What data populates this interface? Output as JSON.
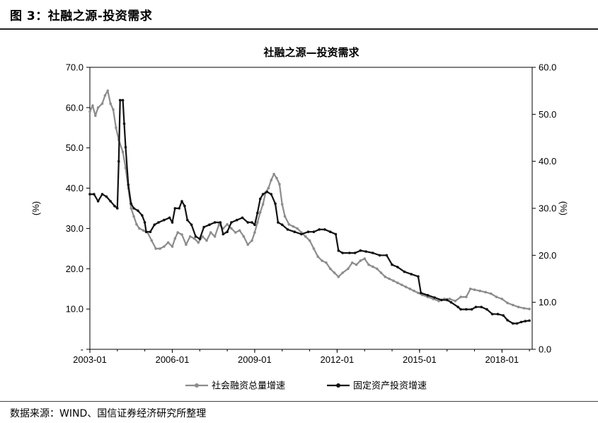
{
  "figure": {
    "label": "图 3：社融之源-投资需求",
    "source": "数据来源：WIND、国信证券经济研究所整理"
  },
  "chart_data": {
    "type": "line",
    "title": "社融之源—投资需求",
    "ylabel_left": "(%)",
    "ylabel_right": "(%)",
    "x_ticks": [
      "2003-01",
      "2006-01",
      "2009-01",
      "2012-01",
      "2015-01",
      "2018-01"
    ],
    "x_range": [
      2003.0,
      2019.1
    ],
    "y_left": {
      "lim": [
        0,
        70
      ],
      "ticks": [
        "-",
        "10.0",
        "20.0",
        "30.0",
        "40.0",
        "50.0",
        "60.0",
        "70.0"
      ]
    },
    "y_right": {
      "lim": [
        0,
        60
      ],
      "ticks": [
        "0.0",
        "10.0",
        "20.0",
        "30.0",
        "40.0",
        "50.0",
        "60.0"
      ]
    },
    "grid": false,
    "legend_position": "bottom",
    "series": [
      {
        "name": "社会融资总量增速",
        "axis": "left",
        "color": "#8c8c8c",
        "marker": "circle",
        "points": [
          [
            2003.0,
            59
          ],
          [
            2003.1,
            60.5
          ],
          [
            2003.2,
            58
          ],
          [
            2003.3,
            60
          ],
          [
            2003.45,
            61
          ],
          [
            2003.55,
            63
          ],
          [
            2003.65,
            64.2
          ],
          [
            2003.75,
            61
          ],
          [
            2003.85,
            59.5
          ],
          [
            2003.95,
            55
          ],
          [
            2004.05,
            52
          ],
          [
            2004.2,
            49
          ],
          [
            2004.3,
            45
          ],
          [
            2004.4,
            40
          ],
          [
            2004.5,
            35
          ],
          [
            2004.6,
            33
          ],
          [
            2004.7,
            31
          ],
          [
            2004.8,
            30
          ],
          [
            2004.95,
            29.5
          ],
          [
            2005.1,
            29
          ],
          [
            2005.25,
            27
          ],
          [
            2005.4,
            25
          ],
          [
            2005.55,
            25
          ],
          [
            2005.7,
            25.5
          ],
          [
            2005.85,
            26.5
          ],
          [
            2006.0,
            25.5
          ],
          [
            2006.1,
            27.5
          ],
          [
            2006.2,
            29
          ],
          [
            2006.35,
            28.5
          ],
          [
            2006.5,
            26
          ],
          [
            2006.65,
            28
          ],
          [
            2006.8,
            27.5
          ],
          [
            2006.95,
            26.5
          ],
          [
            2007.1,
            28
          ],
          [
            2007.25,
            27
          ],
          [
            2007.4,
            29
          ],
          [
            2007.55,
            28
          ],
          [
            2007.7,
            31
          ],
          [
            2007.85,
            30
          ],
          [
            2008.0,
            31
          ],
          [
            2008.15,
            30
          ],
          [
            2008.3,
            29
          ],
          [
            2008.45,
            29.5
          ],
          [
            2008.6,
            28
          ],
          [
            2008.75,
            26
          ],
          [
            2008.9,
            27
          ],
          [
            2009.0,
            29
          ],
          [
            2009.1,
            31.5
          ],
          [
            2009.2,
            34
          ],
          [
            2009.3,
            36
          ],
          [
            2009.4,
            39
          ],
          [
            2009.5,
            40
          ],
          [
            2009.6,
            42
          ],
          [
            2009.7,
            43.5
          ],
          [
            2009.8,
            42.5
          ],
          [
            2009.9,
            41
          ],
          [
            2010.0,
            36
          ],
          [
            2010.1,
            33
          ],
          [
            2010.25,
            31
          ],
          [
            2010.4,
            30.5
          ],
          [
            2010.55,
            30
          ],
          [
            2010.7,
            29
          ],
          [
            2010.85,
            28
          ],
          [
            2011.0,
            27
          ],
          [
            2011.15,
            25
          ],
          [
            2011.3,
            23
          ],
          [
            2011.45,
            22
          ],
          [
            2011.6,
            21.5
          ],
          [
            2011.75,
            20
          ],
          [
            2011.9,
            19
          ],
          [
            2012.05,
            18
          ],
          [
            2012.2,
            19
          ],
          [
            2012.4,
            20
          ],
          [
            2012.55,
            21.5
          ],
          [
            2012.7,
            21
          ],
          [
            2012.85,
            22
          ],
          [
            2013.0,
            22.5
          ],
          [
            2013.15,
            21
          ],
          [
            2013.3,
            20.5
          ],
          [
            2013.45,
            20
          ],
          [
            2013.6,
            19
          ],
          [
            2013.75,
            18
          ],
          [
            2013.9,
            17.5
          ],
          [
            2014.05,
            17
          ],
          [
            2014.2,
            16.5
          ],
          [
            2014.35,
            16
          ],
          [
            2014.5,
            15.5
          ],
          [
            2014.65,
            15
          ],
          [
            2014.8,
            14.5
          ],
          [
            2014.95,
            14
          ],
          [
            2015.1,
            13.5
          ],
          [
            2015.3,
            13
          ],
          [
            2015.5,
            12.5
          ],
          [
            2015.7,
            12
          ],
          [
            2015.9,
            12.5
          ],
          [
            2016.1,
            12.5
          ],
          [
            2016.3,
            12
          ],
          [
            2016.5,
            13
          ],
          [
            2016.7,
            13
          ],
          [
            2016.85,
            15
          ],
          [
            2017.0,
            14.8
          ],
          [
            2017.2,
            14.5
          ],
          [
            2017.4,
            14.2
          ],
          [
            2017.6,
            13.8
          ],
          [
            2017.8,
            13
          ],
          [
            2018.0,
            12.5
          ],
          [
            2018.2,
            11.5
          ],
          [
            2018.4,
            11
          ],
          [
            2018.6,
            10.5
          ],
          [
            2018.8,
            10.2
          ],
          [
            2019.0,
            10
          ]
        ]
      },
      {
        "name": "固定资产投资增速",
        "axis": "right",
        "color": "#111111",
        "marker": "circle",
        "points": [
          [
            2003.0,
            33
          ],
          [
            2003.15,
            33
          ],
          [
            2003.3,
            31.5
          ],
          [
            2003.45,
            33
          ],
          [
            2003.6,
            32.5
          ],
          [
            2003.75,
            31.5
          ],
          [
            2003.9,
            30.5
          ],
          [
            2004.0,
            30
          ],
          [
            2004.05,
            40
          ],
          [
            2004.1,
            53
          ],
          [
            2004.2,
            53
          ],
          [
            2004.25,
            48
          ],
          [
            2004.3,
            43
          ],
          [
            2004.4,
            35
          ],
          [
            2004.5,
            31
          ],
          [
            2004.6,
            30
          ],
          [
            2004.75,
            29.5
          ],
          [
            2004.9,
            28.5
          ],
          [
            2005.0,
            27
          ],
          [
            2005.05,
            25
          ],
          [
            2005.2,
            25
          ],
          [
            2005.35,
            26.5
          ],
          [
            2005.5,
            27
          ],
          [
            2005.7,
            27.5
          ],
          [
            2005.9,
            28
          ],
          [
            2006.0,
            27
          ],
          [
            2006.1,
            30
          ],
          [
            2006.25,
            30
          ],
          [
            2006.35,
            31.5
          ],
          [
            2006.45,
            30.5
          ],
          [
            2006.55,
            27.5
          ],
          [
            2006.7,
            26.5
          ],
          [
            2006.85,
            24
          ],
          [
            2007.0,
            23.5
          ],
          [
            2007.15,
            26
          ],
          [
            2007.35,
            26.5
          ],
          [
            2007.55,
            27
          ],
          [
            2007.75,
            27
          ],
          [
            2007.85,
            24.5
          ],
          [
            2008.0,
            25
          ],
          [
            2008.15,
            27
          ],
          [
            2008.35,
            27.5
          ],
          [
            2008.55,
            28
          ],
          [
            2008.75,
            27
          ],
          [
            2008.9,
            27
          ],
          [
            2009.0,
            26.5
          ],
          [
            2009.1,
            29
          ],
          [
            2009.2,
            32
          ],
          [
            2009.3,
            33
          ],
          [
            2009.45,
            33.5
          ],
          [
            2009.6,
            33
          ],
          [
            2009.75,
            31
          ],
          [
            2009.85,
            27
          ],
          [
            2010.0,
            26.5
          ],
          [
            2010.2,
            25.5
          ],
          [
            2010.45,
            25
          ],
          [
            2010.7,
            24.5
          ],
          [
            2010.95,
            25
          ],
          [
            2011.15,
            25
          ],
          [
            2011.35,
            25.5
          ],
          [
            2011.55,
            25.5
          ],
          [
            2011.75,
            25
          ],
          [
            2011.95,
            24.5
          ],
          [
            2012.05,
            21
          ],
          [
            2012.2,
            20.5
          ],
          [
            2012.45,
            20.5
          ],
          [
            2012.65,
            20.5
          ],
          [
            2012.85,
            21
          ],
          [
            2013.05,
            20.8
          ],
          [
            2013.3,
            20.5
          ],
          [
            2013.55,
            20
          ],
          [
            2013.8,
            20
          ],
          [
            2014.0,
            18
          ],
          [
            2014.2,
            17.5
          ],
          [
            2014.45,
            16.5
          ],
          [
            2014.7,
            16
          ],
          [
            2014.95,
            15.5
          ],
          [
            2015.05,
            12
          ],
          [
            2015.3,
            11.5
          ],
          [
            2015.55,
            11
          ],
          [
            2015.8,
            10.5
          ],
          [
            2016.0,
            10.5
          ],
          [
            2016.15,
            10
          ],
          [
            2016.4,
            9
          ],
          [
            2016.5,
            8.5
          ],
          [
            2016.7,
            8.5
          ],
          [
            2016.9,
            8.5
          ],
          [
            2017.05,
            9
          ],
          [
            2017.25,
            9
          ],
          [
            2017.45,
            8.5
          ],
          [
            2017.65,
            7.5
          ],
          [
            2017.85,
            7.5
          ],
          [
            2018.05,
            7.2
          ],
          [
            2018.2,
            6.2
          ],
          [
            2018.4,
            5.5
          ],
          [
            2018.55,
            5.5
          ],
          [
            2018.7,
            5.8
          ],
          [
            2018.85,
            6
          ],
          [
            2019.0,
            6.1
          ]
        ]
      }
    ]
  }
}
